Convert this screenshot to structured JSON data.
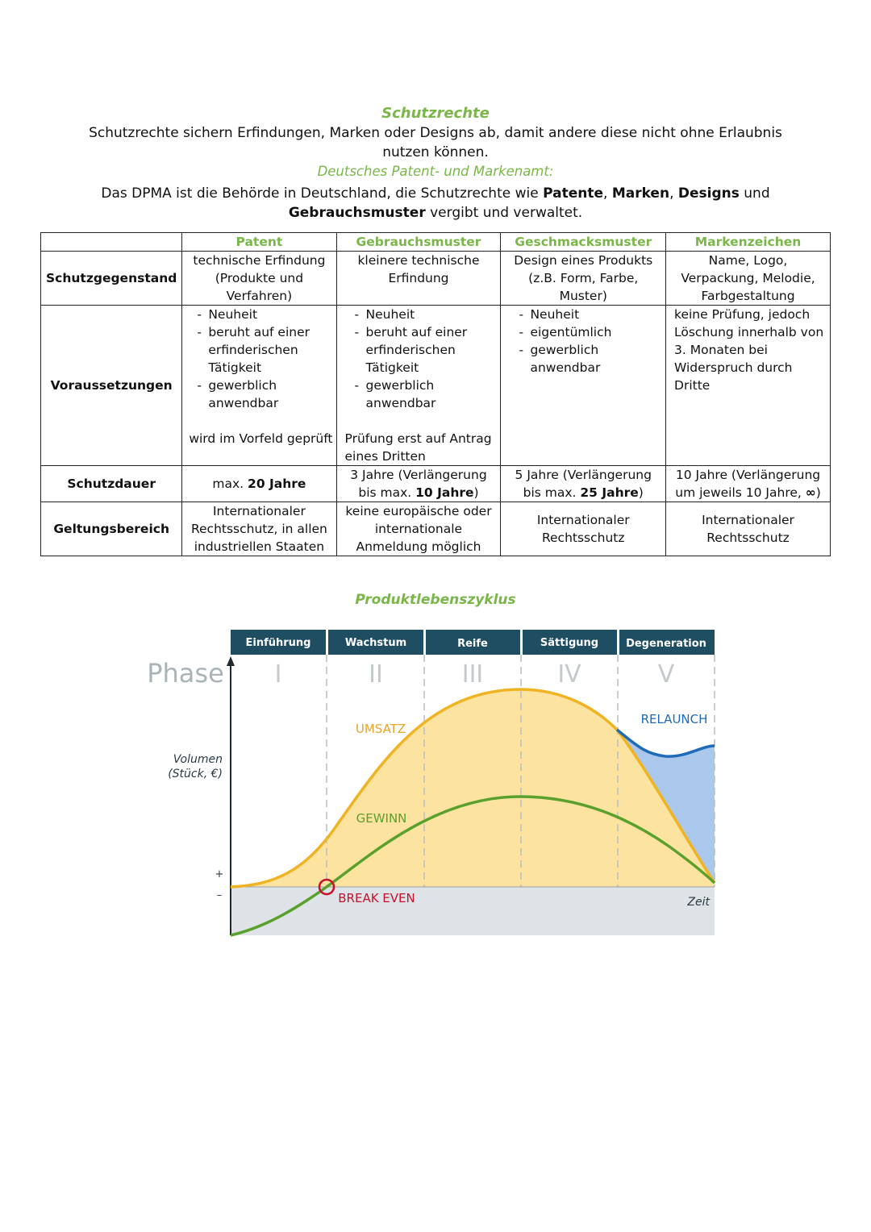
{
  "header": {
    "title": "Schutzrechte",
    "intro_line1": "Schutzrechte sichern Erfindungen, Marken oder Designs ab, damit andere diese nicht ohne Erlaubnis",
    "intro_line2": "nutzen können.",
    "subtitle": "Deutsches Patent- und Markenamt:",
    "dpma_a": "Das DPMA ist die Behörde in Deutschland, die Schutzrechte wie ",
    "dpma_b": "Patente",
    "dpma_c": ", ",
    "dpma_d": "Marken",
    "dpma_e": ", ",
    "dpma_f": "Designs",
    "dpma_g": " und",
    "dpma_h": "Gebrauchsmuster",
    "dpma_i": " vergibt und verwaltet."
  },
  "table": {
    "columns": [
      "Patent",
      "Gebrauchsmuster",
      "Geschmacksmuster",
      "Markenzeichen"
    ],
    "rows": {
      "schutzgegenstand": {
        "label": "Schutzgegenstand",
        "patent": [
          "technische Erfindung",
          "(Produkte und",
          "Verfahren)"
        ],
        "gebrauchsmuster": [
          "kleinere technische",
          "Erfindung"
        ],
        "geschmacksmuster": [
          "Design eines Produkts",
          "(z.B. Form, Farbe,",
          "Muster)"
        ],
        "marken": [
          "Name, Logo,",
          "Verpackung, Melodie,",
          "Farbgestaltung"
        ]
      },
      "voraussetzungen": {
        "label": "Voraussetzungen",
        "patent_items": [
          "Neuheit",
          "beruht auf einer",
          "erfinderischen",
          "Tätigkeit",
          "gewerblich",
          "anwendbar"
        ],
        "patent_note": "wird im Vorfeld geprüft",
        "gebrauchsmuster_items": [
          "Neuheit",
          "beruht auf einer",
          "erfinderischen",
          "Tätigkeit",
          "gewerblich",
          "anwendbar"
        ],
        "gebrauchsmuster_note1": "Prüfung erst auf Antrag",
        "gebrauchsmuster_note2": "eines Dritten",
        "geschmacksmuster_items": [
          "Neuheit",
          "eigentümlich",
          "gewerblich",
          "anwendbar"
        ],
        "marken": [
          "keine Prüfung, jedoch",
          "Löschung innerhalb von",
          "3. Monaten bei",
          "Widerspruch durch",
          "Dritte"
        ]
      },
      "schutzdauer": {
        "label": "Schutzdauer",
        "patent_a": "max. ",
        "patent_b": "20 Jahre",
        "gebrauchsmuster_l1": "3 Jahre (Verlängerung",
        "gebrauchsmuster_l2a": "bis max. ",
        "gebrauchsmuster_l2b": "10 Jahre",
        "gebrauchsmuster_l2c": ")",
        "geschmacksmuster_l1": "5 Jahre (Verlängerung",
        "geschmacksmuster_l2a": "bis max. ",
        "geschmacksmuster_l2b": "25 Jahre",
        "geschmacksmuster_l2c": ")",
        "marken_l1": "10 Jahre (Verlängerung",
        "marken_l2a": "um jeweils 10 Jahre, ",
        "marken_l2b": "∞",
        "marken_l2c": ")"
      },
      "geltungsbereich": {
        "label": "Geltungsbereich",
        "patent": [
          "Internationaler",
          "Rechtsschutz, in allen",
          "industriellen Staaten"
        ],
        "gebrauchsmuster": [
          "keine europäische oder",
          "internationale",
          "Anmeldung möglich"
        ],
        "geschmacksmuster": [
          "Internationaler",
          "Rechtsschutz"
        ],
        "marken": [
          "Internationaler",
          "Rechtsschutz"
        ]
      }
    }
  },
  "plc": {
    "title": "Produktlebenszyklus",
    "phase_label": "Phase",
    "phases": [
      {
        "name": "Einführung",
        "numeral": "I"
      },
      {
        "name": "Wachstum",
        "numeral": "II"
      },
      {
        "name": "Reife",
        "numeral": "III"
      },
      {
        "name": "Sättigung",
        "numeral": "IV"
      },
      {
        "name": "Degeneration",
        "numeral": "V"
      }
    ],
    "y_label_1": "Volumen",
    "y_label_2": "(Stück, €)",
    "plus": "+",
    "minus": "–",
    "umsatz": "UMSATZ",
    "gewinn": "GEWINN",
    "break_even": "BREAK EVEN",
    "relaunch": "RELAUNCH",
    "zeit": "Zeit",
    "colors": {
      "header": "#1f4e63",
      "umsatz_line": "#f0b323",
      "umsatz_fill": "#fde3a0",
      "gewinn_line": "#5aa02c",
      "relaunch_fill": "#a9c8ec",
      "relaunch_line": "#1f6bb8",
      "negative_fill": "#dde3e6",
      "break_even": "#c8102e"
    }
  }
}
